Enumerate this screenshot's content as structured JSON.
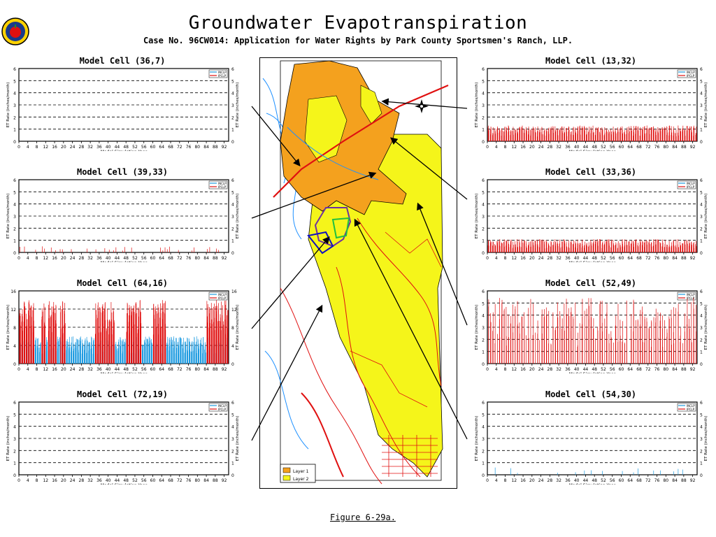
{
  "title": "Groundwater Evapotranspiration",
  "subtitle": "Case No. 96CW014: Application for Water Rights by Park County Sportsmen's Ranch, LLP.",
  "caption": "Figure 6-29a.",
  "map": {
    "legend": [
      "Layer 1",
      "Layer 2"
    ],
    "colors": {
      "layer1": "#f4a11e",
      "layer2": "#f5f51a",
      "stream": "#e01010",
      "water": "#1e90ff",
      "boundary": "#7030a0",
      "green": "#20c040"
    }
  },
  "colors": {
    "series1": "#1e9be0",
    "series2": "#e01010"
  },
  "chart_data": [
    {
      "cell": "Model Cell (36,7)",
      "type": "bar",
      "xlabel": "Model Simulation Year",
      "ylabel": "ET Rate (inches/month)",
      "ylabel_right": "ET Rate (inches/month)",
      "ylim": [
        0,
        6
      ],
      "yticks": [
        0,
        1,
        2,
        3,
        4,
        5,
        6
      ],
      "xticks": [
        0,
        4,
        8,
        12,
        16,
        20,
        24,
        28,
        32,
        36,
        40,
        44,
        48,
        52,
        56,
        60,
        64,
        68,
        72,
        76,
        80,
        84,
        88,
        92
      ],
      "legend": [
        "INCLP",
        "IPCLP"
      ],
      "series": [
        {
          "pattern": "none",
          "peak": 0
        },
        {
          "pattern": "none",
          "peak": 0
        }
      ]
    },
    {
      "cell": "Model Cell (13,32)",
      "type": "bar",
      "xlabel": "Model Simulation Year",
      "ylabel": "ET Rate (inches/month)",
      "ylabel_right": "ET Rate (inches/month)",
      "ylim": [
        0,
        6
      ],
      "yticks": [
        0,
        1,
        2,
        3,
        4,
        5,
        6
      ],
      "xticks": [
        0,
        4,
        8,
        12,
        16,
        20,
        24,
        28,
        32,
        36,
        40,
        44,
        48,
        52,
        56,
        60,
        64,
        68,
        72,
        76,
        80,
        84,
        88,
        92
      ],
      "legend": [
        "INCLP",
        "IPCLP"
      ],
      "series": [
        {
          "pattern": "none",
          "peak": 0
        },
        {
          "pattern": "dense",
          "peak": 1.3
        }
      ]
    },
    {
      "cell": "Model Cell (39,33)",
      "type": "bar",
      "xlabel": "Model Simulation Year",
      "ylabel": "ET Rate (inches/month)",
      "ylabel_right": "ET Rate (inches/month)",
      "ylim": [
        0,
        6
      ],
      "yticks": [
        0,
        1,
        2,
        3,
        4,
        5,
        6
      ],
      "xticks": [
        0,
        4,
        8,
        12,
        16,
        20,
        24,
        28,
        32,
        36,
        40,
        44,
        48,
        52,
        56,
        60,
        64,
        68,
        72,
        76,
        80,
        84,
        88,
        92
      ],
      "legend": [
        "INCLP",
        "IPCLP"
      ],
      "series": [
        {
          "pattern": "none",
          "peak": 0
        },
        {
          "pattern": "sparse",
          "peak": 0.5
        }
      ]
    },
    {
      "cell": "Model Cell (33,36)",
      "type": "bar",
      "xlabel": "Model Simulation Year",
      "ylabel": "ET Rate (inches/month)",
      "ylabel_right": "ET Rate (inches/month)",
      "ylim": [
        0,
        6
      ],
      "yticks": [
        0,
        1,
        2,
        3,
        4,
        5,
        6
      ],
      "xticks": [
        0,
        4,
        8,
        12,
        16,
        20,
        24,
        28,
        32,
        36,
        40,
        44,
        48,
        52,
        56,
        60,
        64,
        68,
        72,
        76,
        80,
        84,
        88,
        92
      ],
      "legend": [
        "INCLP",
        "IPCLP"
      ],
      "series": [
        {
          "pattern": "none",
          "peak": 0
        },
        {
          "pattern": "dense",
          "peak": 1.1
        }
      ]
    },
    {
      "cell": "Model Cell (64,16)",
      "type": "bar",
      "xlabel": "Model Simulation Year",
      "ylabel": "ET Rate (inches/month)",
      "ylabel_right": "ET Rate (inches/month)",
      "ylim": [
        0,
        16
      ],
      "yticks": [
        0,
        4,
        8,
        12,
        16
      ],
      "xticks": [
        0,
        4,
        8,
        12,
        16,
        20,
        24,
        28,
        32,
        36,
        40,
        44,
        48,
        52,
        56,
        60,
        64,
        68,
        72,
        76,
        80,
        84,
        88,
        92
      ],
      "legend": [
        "INCLP",
        "IPCLP"
      ],
      "series": [
        {
          "pattern": "dense",
          "peak": 6
        },
        {
          "pattern": "bursts",
          "peak": 14
        }
      ]
    },
    {
      "cell": "Model Cell (52,49)",
      "type": "bar",
      "xlabel": "Model Simulation Year",
      "ylabel": "ET Rate (inches/month)",
      "ylabel_right": "ET Rate (inches/month)",
      "ylim": [
        0,
        6
      ],
      "yticks": [
        0,
        1,
        2,
        3,
        4,
        5,
        6
      ],
      "xticks": [
        0,
        4,
        8,
        12,
        16,
        20,
        24,
        28,
        32,
        36,
        40,
        44,
        48,
        52,
        56,
        60,
        64,
        68,
        72,
        76,
        80,
        84,
        88,
        92
      ],
      "legend": [
        "INCLP",
        "IPCLP"
      ],
      "series": [
        {
          "pattern": "none",
          "peak": 0
        },
        {
          "pattern": "tall",
          "peak": 5.5
        }
      ]
    },
    {
      "cell": "Model Cell (72,19)",
      "type": "bar",
      "xlabel": "Model Simulation Year",
      "ylabel": "ET Rate (inches/month)",
      "ylabel_right": "ET Rate (inches/month)",
      "ylim": [
        0,
        6
      ],
      "yticks": [
        0,
        1,
        2,
        3,
        4,
        5,
        6
      ],
      "xticks": [
        0,
        4,
        8,
        12,
        16,
        20,
        24,
        28,
        32,
        36,
        40,
        44,
        48,
        52,
        56,
        60,
        64,
        68,
        72,
        76,
        80,
        84,
        88,
        92
      ],
      "legend": [
        "INCLP",
        "IPCLP"
      ],
      "series": [
        {
          "pattern": "none",
          "peak": 0
        },
        {
          "pattern": "none",
          "peak": 0
        }
      ]
    },
    {
      "cell": "Model Cell (54,30)",
      "type": "bar",
      "xlabel": "Model Simulation Year",
      "ylabel": "ET Rate (inches/month)",
      "ylabel_right": "ET Rate (inches/month)",
      "ylim": [
        0,
        6
      ],
      "yticks": [
        0,
        1,
        2,
        3,
        4,
        5,
        6
      ],
      "xticks": [
        0,
        4,
        8,
        12,
        16,
        20,
        24,
        28,
        32,
        36,
        40,
        44,
        48,
        52,
        56,
        60,
        64,
        68,
        72,
        76,
        80,
        84,
        88,
        92
      ],
      "legend": [
        "INCLP",
        "IPCLP"
      ],
      "series": [
        {
          "pattern": "tiny",
          "peak": 0.6
        },
        {
          "pattern": "none",
          "peak": 0
        }
      ]
    }
  ]
}
